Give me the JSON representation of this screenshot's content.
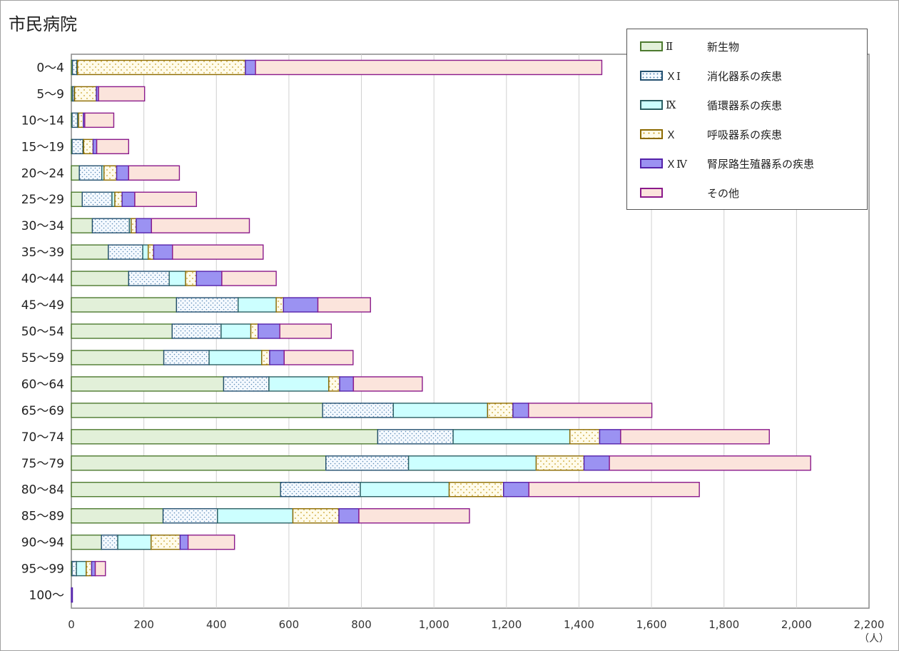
{
  "title": "市民病院",
  "unit": "（人）",
  "colors": {
    "II": {
      "fill": "#e2f0d9",
      "stroke": "#4d7a2f",
      "pattern": "none"
    },
    "XI": {
      "fill": "#f4f9ff",
      "stroke": "#24506f",
      "pattern": "dots-blue"
    },
    "IX": {
      "fill": "#ccffff",
      "stroke": "#2c5f63",
      "pattern": "none"
    },
    "X": {
      "fill": "#fffbea",
      "stroke": "#8c6a00",
      "pattern": "dots-gold"
    },
    "XIV": {
      "fill": "#9b92f2",
      "stroke": "#5522aa",
      "pattern": "none"
    },
    "other": {
      "fill": "#fbe4dc",
      "stroke": "#8b1a8b",
      "pattern": "none"
    }
  },
  "legend": [
    {
      "key": "II",
      "code": "Ⅱ",
      "label": "新生物"
    },
    {
      "key": "XI",
      "code": "ＸⅠ",
      "label": "消化器系の疾患"
    },
    {
      "key": "IX",
      "code": "Ⅸ",
      "label": "循環器系の疾患"
    },
    {
      "key": "X",
      "code": "Ｘ",
      "label": "呼吸器系の疾患"
    },
    {
      "key": "XIV",
      "code": "ＸⅣ",
      "label": "腎尿路生殖器系の疾患"
    },
    {
      "key": "other",
      "code": "",
      "label": "その他"
    }
  ],
  "chart_data": {
    "type": "bar",
    "orientation": "horizontal",
    "stacked": true,
    "title": "市民病院",
    "xlim": [
      0,
      2200
    ],
    "xticks": [
      "0",
      "200",
      "400",
      "600",
      "800",
      "1,000",
      "1,200",
      "1,400",
      "1,600",
      "1,800",
      "2,000",
      "2,200"
    ],
    "xtick_values": [
      0,
      200,
      400,
      600,
      800,
      1000,
      1200,
      1400,
      1600,
      1800,
      2000,
      2200
    ],
    "grid": "vertical",
    "legend_position": "top-right",
    "categories": [
      "0～4",
      "5～9",
      "10～14",
      "15～19",
      "20～24",
      "25～29",
      "30～34",
      "35～39",
      "40～44",
      "45～49",
      "50～54",
      "55～59",
      "60～64",
      "65～69",
      "70～74",
      "75～79",
      "80～84",
      "85～89",
      "90～94",
      "95～99",
      "100～"
    ],
    "series": [
      {
        "key": "II",
        "name": "Ⅱ 新生物",
        "values": [
          3,
          3,
          2,
          2,
          22,
          30,
          58,
          102,
          158,
          290,
          278,
          255,
          420,
          693,
          845,
          702,
          577,
          253,
          83,
          2,
          0
        ]
      },
      {
        "key": "XI",
        "name": "ＸⅠ 消化器系の疾患",
        "values": [
          12,
          5,
          15,
          30,
          62,
          82,
          102,
          95,
          112,
          170,
          135,
          125,
          125,
          195,
          208,
          228,
          220,
          150,
          45,
          12,
          0
        ]
      },
      {
        "key": "IX",
        "name": "Ⅸ 循環器系の疾患",
        "values": [
          2,
          1,
          3,
          2,
          6,
          8,
          5,
          15,
          45,
          105,
          82,
          145,
          165,
          260,
          322,
          352,
          245,
          208,
          92,
          27,
          0
        ]
      },
      {
        "key": "X",
        "name": "Ｘ 呼吸器系の疾患",
        "values": [
          463,
          60,
          13,
          26,
          35,
          20,
          14,
          15,
          30,
          20,
          20,
          22,
          30,
          70,
          82,
          132,
          150,
          127,
          80,
          15,
          0
        ]
      },
      {
        "key": "XIV",
        "name": "ＸⅣ 腎尿路生殖器系の疾患",
        "values": [
          28,
          6,
          4,
          10,
          33,
          35,
          42,
          52,
          70,
          95,
          60,
          40,
          38,
          43,
          58,
          70,
          70,
          55,
          22,
          10,
          3
        ]
      },
      {
        "key": "other",
        "name": "その他",
        "values": [
          955,
          127,
          80,
          88,
          140,
          170,
          270,
          250,
          150,
          145,
          142,
          190,
          190,
          340,
          410,
          555,
          470,
          305,
          128,
          28,
          0
        ]
      }
    ]
  }
}
